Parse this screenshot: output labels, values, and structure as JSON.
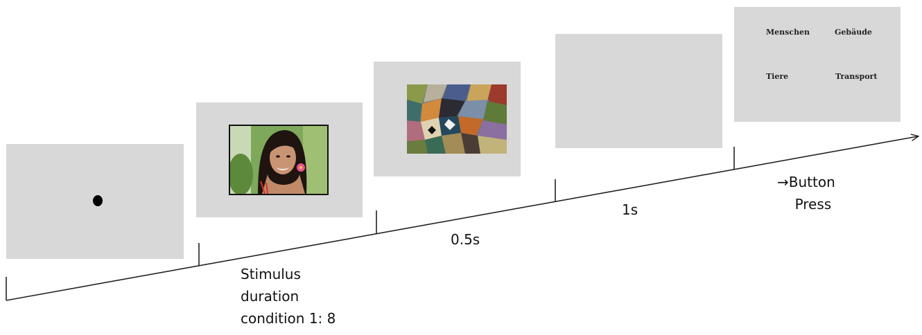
{
  "response_screen": {
    "choices": [
      "Menschen",
      "Gebäude",
      "Tiere",
      "Transport"
    ]
  },
  "timeline": {
    "stimulus_duration_label": "Stimulus\nduration\ncondition 1: 8",
    "mask_duration_label": "0.5s",
    "blank_duration_label": "1s",
    "response_arrow_glyph": "→",
    "response_label_line1": "Button",
    "response_label_line2": "Press"
  },
  "colors": {
    "panel_background": "#d8d8d8",
    "timeline": "#222222"
  }
}
